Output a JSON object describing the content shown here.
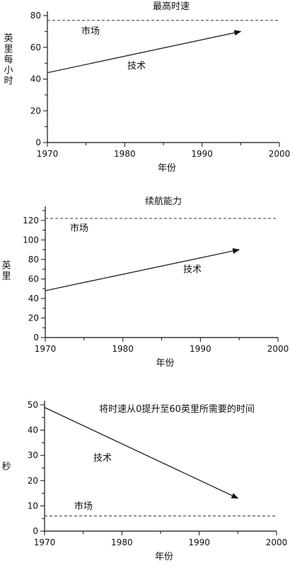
{
  "chart_data": [
    {
      "type": "line",
      "title": "最高时速",
      "xlabel": "年份",
      "ylabel": "英里每小时",
      "xlim": [
        1970,
        2000
      ],
      "ylim": [
        0,
        80
      ],
      "xticks": [
        1970,
        1980,
        1990,
        2000
      ],
      "yticks": [
        0,
        20,
        40,
        60,
        80
      ],
      "series": [
        {
          "name": "技术",
          "style": "solid-arrow",
          "x": [
            1970,
            1995
          ],
          "y": [
            44,
            70
          ]
        },
        {
          "name": "市场",
          "style": "dashed",
          "x": [
            1970,
            2000
          ],
          "y": [
            77,
            77
          ]
        }
      ],
      "grid": false
    },
    {
      "type": "line",
      "title": "续航能力",
      "xlabel": "年份",
      "ylabel": "英里",
      "xlim": [
        1970,
        2000
      ],
      "ylim": [
        0,
        130
      ],
      "xticks": [
        1970,
        1980,
        1990,
        2000
      ],
      "yticks": [
        0,
        20,
        40,
        60,
        80,
        100,
        120
      ],
      "series": [
        {
          "name": "技术",
          "style": "solid-arrow",
          "x": [
            1970,
            1995
          ],
          "y": [
            48,
            90
          ]
        },
        {
          "name": "市场",
          "style": "dashed",
          "x": [
            1970,
            2000
          ],
          "y": [
            122,
            122
          ]
        }
      ],
      "grid": false
    },
    {
      "type": "line",
      "title": "将时速从0提升至60英里所需要的时间",
      "xlabel": "年份",
      "ylabel": "秒",
      "xlim": [
        1970,
        2000
      ],
      "ylim": [
        0,
        50
      ],
      "xticks": [
        1970,
        1980,
        1990,
        2000
      ],
      "yticks": [
        0,
        10,
        20,
        30,
        40,
        50
      ],
      "series": [
        {
          "name": "技术",
          "style": "solid-arrow",
          "x": [
            1970,
            1995
          ],
          "y": [
            49,
            13
          ]
        },
        {
          "name": "市场",
          "style": "dashed",
          "x": [
            1970,
            2000
          ],
          "y": [
            6,
            6
          ]
        }
      ],
      "grid": false
    }
  ]
}
